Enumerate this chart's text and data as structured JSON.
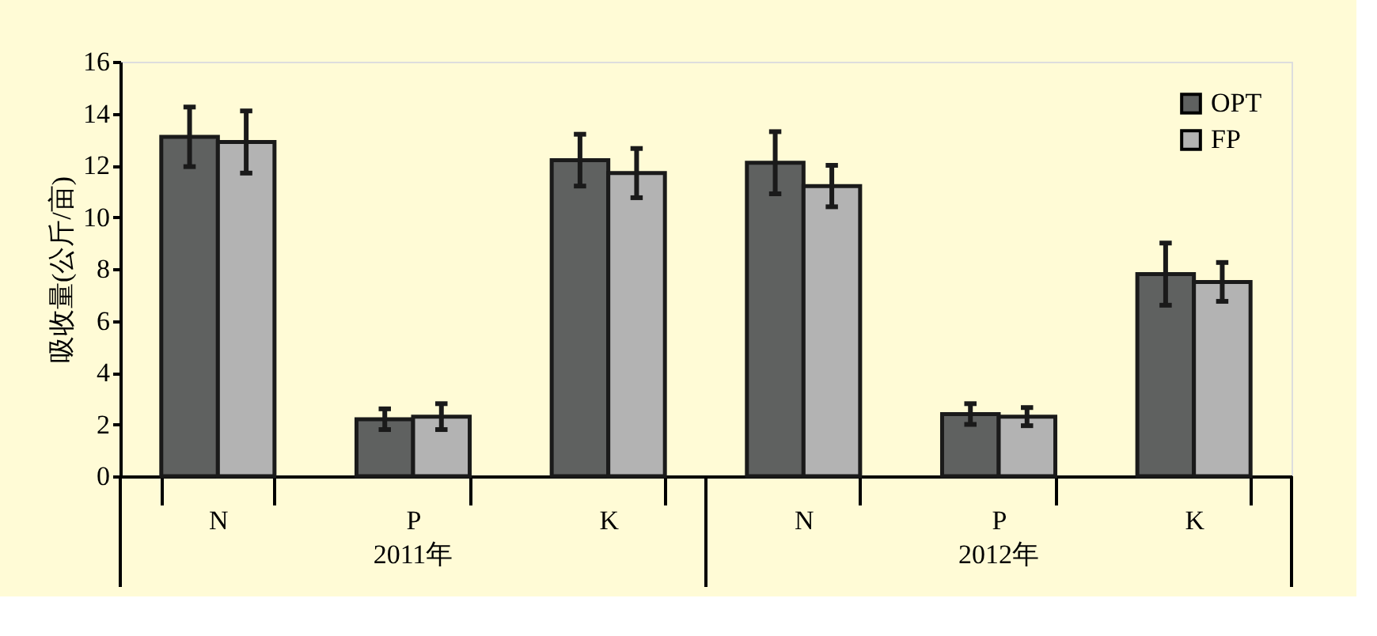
{
  "chart_data": {
    "type": "bar",
    "ylabel": "吸收量(公斤/亩)",
    "categories": [
      "N",
      "P",
      "K",
      "N",
      "P",
      "K"
    ],
    "series": [
      {
        "name": "OPT",
        "color": "#5f6160",
        "values": [
          13.1,
          2.2,
          12.2,
          12.1,
          2.4,
          7.8
        ],
        "errors": [
          1.15,
          0.4,
          1.0,
          1.2,
          0.4,
          1.2
        ]
      },
      {
        "name": "FP",
        "color": "#b3b3b3",
        "values": [
          12.9,
          2.3,
          11.7,
          11.2,
          2.3,
          7.5
        ],
        "errors": [
          1.2,
          0.5,
          0.95,
          0.8,
          0.35,
          0.75
        ]
      }
    ],
    "annotations": [
      "2011年",
      "2012年"
    ],
    "ylim": [
      0,
      16
    ],
    "yticks": [
      0,
      2,
      4,
      6,
      8,
      10,
      12,
      14,
      16
    ],
    "legend": "top right",
    "grid": false
  }
}
